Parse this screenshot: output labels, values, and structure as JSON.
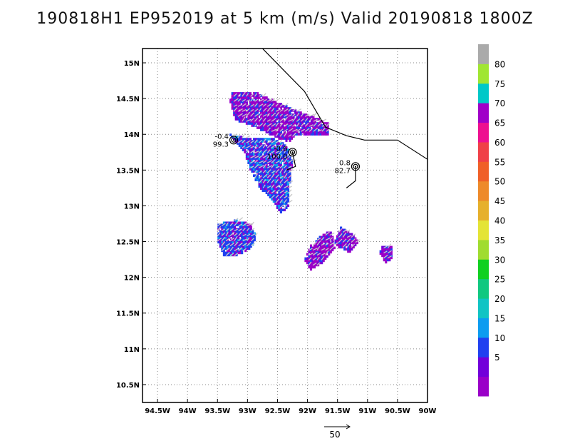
{
  "title": "190818H1 EP952019 at 5 km (m/s) Valid 20190818 1800Z",
  "chart_data": {
    "type": "heatmap",
    "title": "190818H1 EP952019 at 5 km (m/s) Valid 20190818 1800Z",
    "xlim": [
      -94.75,
      -90
    ],
    "ylim": [
      10.25,
      15.2
    ],
    "x_ticks": [
      {
        "value": -94.5,
        "label": "94.5W"
      },
      {
        "value": -94,
        "label": "94W"
      },
      {
        "value": -93.5,
        "label": "93.5W"
      },
      {
        "value": -93,
        "label": "93W"
      },
      {
        "value": -92.5,
        "label": "92.5W"
      },
      {
        "value": -92,
        "label": "92W"
      },
      {
        "value": -91.5,
        "label": "91.5W"
      },
      {
        "value": -91,
        "label": "91W"
      },
      {
        "value": -90.5,
        "label": "90.5W"
      },
      {
        "value": -90,
        "label": "90W"
      }
    ],
    "y_ticks": [
      {
        "value": 10.5,
        "label": "10.5N"
      },
      {
        "value": 11,
        "label": "11N"
      },
      {
        "value": 11.5,
        "label": "11.5N"
      },
      {
        "value": 12,
        "label": "12N"
      },
      {
        "value": 12.5,
        "label": "12.5N"
      },
      {
        "value": 13,
        "label": "13N"
      },
      {
        "value": 13.5,
        "label": "13.5N"
      },
      {
        "value": 14,
        "label": "14N"
      },
      {
        "value": 14.5,
        "label": "14.5N"
      },
      {
        "value": 15,
        "label": "15N"
      }
    ],
    "grid": true,
    "colorbar": {
      "levels": [
        {
          "label": "",
          "color": "#9a00c8"
        },
        {
          "label": "5",
          "color": "#7200da"
        },
        {
          "label": "10",
          "color": "#2040f0"
        },
        {
          "label": "15",
          "color": "#0c9cf0"
        },
        {
          "label": "20",
          "color": "#10c4c4"
        },
        {
          "label": "25",
          "color": "#10c880"
        },
        {
          "label": "30",
          "color": "#10d020"
        },
        {
          "label": "35",
          "color": "#a0dc30"
        },
        {
          "label": "40",
          "color": "#e4e436"
        },
        {
          "label": "45",
          "color": "#e6b02c"
        },
        {
          "label": "50",
          "color": "#ee8a2a"
        },
        {
          "label": "55",
          "color": "#f06028"
        },
        {
          "label": "60",
          "color": "#f04048"
        },
        {
          "label": "65",
          "color": "#ee1090"
        },
        {
          "label": "70",
          "color": "#a000c8"
        },
        {
          "label": "75",
          "color": "#00c8c8"
        },
        {
          "label": "80",
          "color": "#a0e632"
        },
        {
          "label": "",
          "color": "#aaaaaa"
        }
      ]
    },
    "center_markers": [
      {
        "lon": -93.23,
        "lat": 13.92,
        "top": "-0.4",
        "bottom": "99.3"
      },
      {
        "lon": -92.25,
        "lat": 13.75,
        "top": "-0.6",
        "bottom": "100.0"
      },
      {
        "lon": -91.2,
        "lat": 13.55,
        "top": "0.8",
        "bottom": "82.7"
      }
    ],
    "reference_vector": {
      "label": "50",
      "unit": "m/s"
    },
    "coastline": [
      [
        -92.75,
        15.2
      ],
      [
        -92.05,
        14.6
      ],
      [
        -91.7,
        14.1
      ],
      [
        -91.35,
        13.98
      ],
      [
        -91.05,
        13.92
      ],
      [
        -90.5,
        13.92
      ],
      [
        -90,
        13.65
      ]
    ],
    "track": [
      [
        -91.2,
        13.55
      ],
      [
        -91.2,
        13.35
      ],
      [
        -91.35,
        13.25
      ]
    ],
    "swath_segment": [
      [
        -92.25,
        13.75
      ],
      [
        -92.2,
        13.55
      ],
      [
        -92.35,
        13.5
      ]
    ],
    "echo_regions": [
      {
        "dominant": "5-10",
        "polygon": [
          [
            -93.25,
            14.6
          ],
          [
            -92.9,
            14.6
          ],
          [
            -92.5,
            14.45
          ],
          [
            -92.1,
            14.3
          ],
          [
            -91.9,
            14.25
          ],
          [
            -91.65,
            14.15
          ],
          [
            -91.65,
            14.0
          ],
          [
            -91.95,
            14.0
          ],
          [
            -92.2,
            14.0
          ],
          [
            -92.3,
            13.9
          ],
          [
            -92.5,
            13.95
          ],
          [
            -92.75,
            14.05
          ],
          [
            -93.0,
            14.15
          ],
          [
            -93.2,
            14.2
          ],
          [
            -93.3,
            14.45
          ]
        ]
      },
      {
        "dominant": "10-15",
        "polygon": [
          [
            -93.3,
            14.0
          ],
          [
            -93.0,
            13.95
          ],
          [
            -92.6,
            13.95
          ],
          [
            -92.35,
            13.85
          ],
          [
            -92.25,
            13.6
          ],
          [
            -92.3,
            13.3
          ],
          [
            -92.3,
            13.0
          ],
          [
            -92.45,
            12.9
          ],
          [
            -92.6,
            13.1
          ],
          [
            -92.8,
            13.25
          ],
          [
            -92.95,
            13.5
          ],
          [
            -93.05,
            13.75
          ]
        ]
      },
      {
        "dominant": "10-15",
        "polygon": [
          [
            -93.5,
            12.75
          ],
          [
            -93.2,
            12.8
          ],
          [
            -92.95,
            12.75
          ],
          [
            -92.85,
            12.55
          ],
          [
            -92.95,
            12.4
          ],
          [
            -93.2,
            12.3
          ],
          [
            -93.4,
            12.3
          ],
          [
            -93.5,
            12.5
          ]
        ]
      },
      {
        "dominant": "5-10",
        "polygon": [
          [
            -91.95,
            12.45
          ],
          [
            -91.75,
            12.6
          ],
          [
            -91.6,
            12.65
          ],
          [
            -91.55,
            12.4
          ],
          [
            -91.75,
            12.2
          ],
          [
            -91.95,
            12.1
          ],
          [
            -92.05,
            12.25
          ]
        ]
      },
      {
        "dominant": "5-10",
        "polygon": [
          [
            -91.45,
            12.7
          ],
          [
            -91.25,
            12.6
          ],
          [
            -91.15,
            12.5
          ],
          [
            -91.3,
            12.35
          ],
          [
            -91.45,
            12.4
          ],
          [
            -91.55,
            12.5
          ]
        ]
      },
      {
        "dominant": "5-10",
        "polygon": [
          [
            -90.75,
            12.45
          ],
          [
            -90.6,
            12.45
          ],
          [
            -90.6,
            12.25
          ],
          [
            -90.7,
            12.2
          ],
          [
            -90.8,
            12.35
          ]
        ]
      }
    ]
  }
}
